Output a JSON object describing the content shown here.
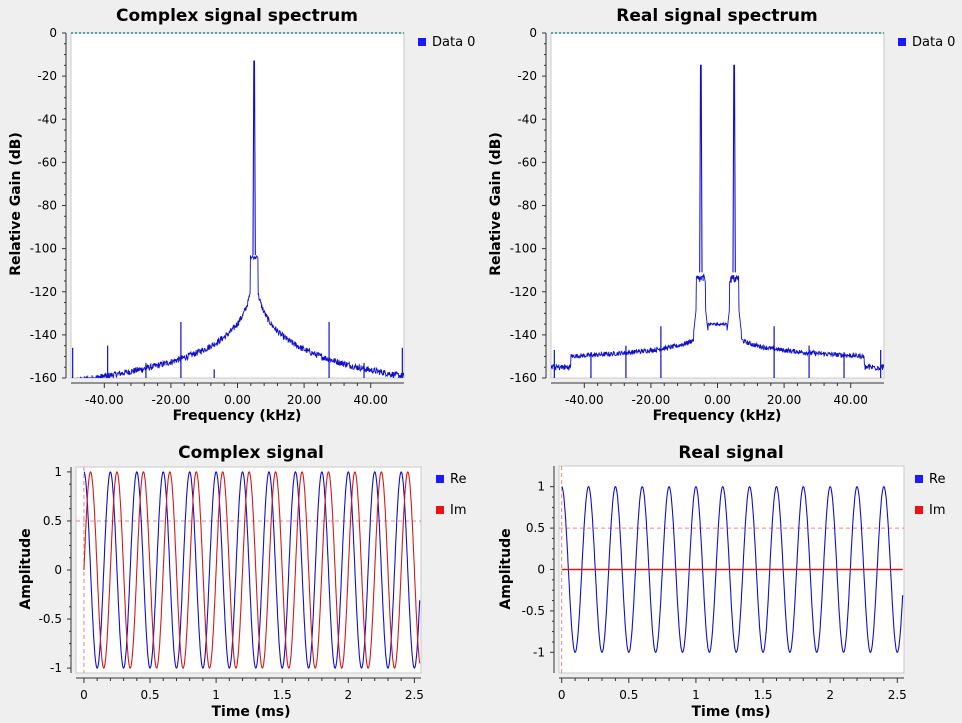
{
  "colors": {
    "series_blue": "#1010cc",
    "series_red": "#d41a1a",
    "reference_teal": "#007a7a",
    "marker_pink": "#f08080",
    "legend_blue": "#1a1aff",
    "legend_red": "#ee1111"
  },
  "chart_data": [
    {
      "type": "line",
      "title": "Complex signal spectrum",
      "xlabel": "Frequency (kHz)",
      "ylabel": "Relative Gain (dB)",
      "xlim": [
        -50,
        50
      ],
      "ylim": [
        -160,
        0
      ],
      "x_ticks": [
        -40,
        -20,
        0,
        20,
        40
      ],
      "x_tick_labels": [
        "-40.00",
        "-20.00",
        "0.00",
        "20.00",
        "40.00"
      ],
      "y_ticks": [
        0,
        -20,
        -40,
        -60,
        -80,
        -100,
        -120,
        -140,
        -160
      ],
      "y_tick_labels": [
        "0",
        "-20",
        "-40",
        "-60",
        "-80",
        "-100",
        "-120",
        "-140",
        "-160"
      ],
      "reference_line_y": 0,
      "legend": {
        "position": "right",
        "entries": [
          "Data 0"
        ]
      },
      "series": [
        {
          "name": "Data 0",
          "peaks": [
            {
              "x": 5,
              "y": -13
            }
          ],
          "shoulder": {
            "x": 5,
            "y": -103
          },
          "floor": -160,
          "spurs": [
            {
              "x": -49.5,
              "y": -146
            },
            {
              "x": -39,
              "y": -145
            },
            {
              "x": -27.5,
              "y": -153
            },
            {
              "x": -17,
              "y": -134
            },
            {
              "x": -7,
              "y": -156
            },
            {
              "x": 27.5,
              "y": -134
            },
            {
              "x": 38,
              "y": -153
            },
            {
              "x": 49.5,
              "y": -146
            }
          ]
        }
      ]
    },
    {
      "type": "line",
      "title": "Real signal spectrum",
      "xlabel": "Frequency (kHz)",
      "ylabel": "Relative Gain (dB)",
      "xlim": [
        -50,
        50
      ],
      "ylim": [
        -160,
        0
      ],
      "x_ticks": [
        -40,
        -20,
        0,
        20,
        40
      ],
      "x_tick_labels": [
        "-40.00",
        "-20.00",
        "0.00",
        "20.00",
        "40.00"
      ],
      "y_ticks": [
        0,
        -20,
        -40,
        -60,
        -80,
        -100,
        -120,
        -140,
        -160
      ],
      "y_tick_labels": [
        "0",
        "-20",
        "-40",
        "-60",
        "-80",
        "-100",
        "-120",
        "-140",
        "-160"
      ],
      "reference_line_y": 0,
      "legend": {
        "position": "right",
        "entries": [
          "Data 0"
        ]
      },
      "series": [
        {
          "name": "Data 0",
          "peaks": [
            {
              "x": -5,
              "y": -15
            },
            {
              "x": 5,
              "y": -15
            }
          ],
          "shoulders": [
            {
              "x": -5,
              "y": -111
            },
            {
              "x": 5,
              "y": -111
            }
          ],
          "floor": -155,
          "spurs": [
            {
              "x": -49,
              "y": -147
            },
            {
              "x": -38,
              "y": -148
            },
            {
              "x": -27.5,
              "y": -145
            },
            {
              "x": -17,
              "y": -136
            },
            {
              "x": 17,
              "y": -136
            },
            {
              "x": 27.5,
              "y": -145
            },
            {
              "x": 38,
              "y": -148
            },
            {
              "x": 49,
              "y": -147
            }
          ]
        }
      ]
    },
    {
      "type": "line",
      "title": "Complex signal",
      "xlabel": "Time (ms)",
      "ylabel": "Amplitude",
      "xlim": [
        -0.06,
        2.55
      ],
      "ylim": [
        -1.05,
        1.05
      ],
      "x_ticks": [
        0,
        0.5,
        1,
        1.5,
        2,
        2.5
      ],
      "x_tick_labels": [
        "0",
        "0.5",
        "1",
        "1.5",
        "2",
        "2.5"
      ],
      "y_ticks": [
        1,
        0.5,
        0,
        -0.5,
        -1
      ],
      "y_tick_labels": [
        "1",
        "0.5",
        "0",
        "-0.5",
        "-1"
      ],
      "marker_lines": {
        "x": 0,
        "y": 0.5
      },
      "legend": {
        "position": "right",
        "entries": [
          "Re",
          "Im"
        ]
      },
      "series": [
        {
          "name": "Re",
          "kind": "cosine",
          "frequency_khz": 5,
          "amplitude": 1,
          "phase_deg": 0
        },
        {
          "name": "Im",
          "kind": "sine",
          "frequency_khz": 5,
          "amplitude": 1,
          "phase_deg": 0
        }
      ],
      "x_end": 2.54
    },
    {
      "type": "line",
      "title": "Real signal",
      "xlabel": "Time (ms)",
      "ylabel": "Amplitude",
      "xlim": [
        -0.02,
        2.55
      ],
      "ylim": [
        -1.25,
        1.25
      ],
      "x_ticks": [
        0,
        0.5,
        1,
        1.5,
        2,
        2.5
      ],
      "x_tick_labels": [
        "0",
        "0.5",
        "1",
        "1.5",
        "2",
        "2.5"
      ],
      "y_ticks": [
        1,
        0.5,
        0,
        -0.5,
        -1
      ],
      "y_tick_labels": [
        "1",
        "0.5",
        "0",
        "-0.5",
        "-1"
      ],
      "marker_lines": {
        "x": 0,
        "y": 0.5
      },
      "legend": {
        "position": "right",
        "entries": [
          "Re",
          "Im"
        ]
      },
      "series": [
        {
          "name": "Re",
          "kind": "cosine",
          "frequency_khz": 5,
          "amplitude": 1,
          "phase_deg": 0
        },
        {
          "name": "Im",
          "kind": "constant",
          "value": 0
        }
      ],
      "x_end": 2.54
    }
  ]
}
